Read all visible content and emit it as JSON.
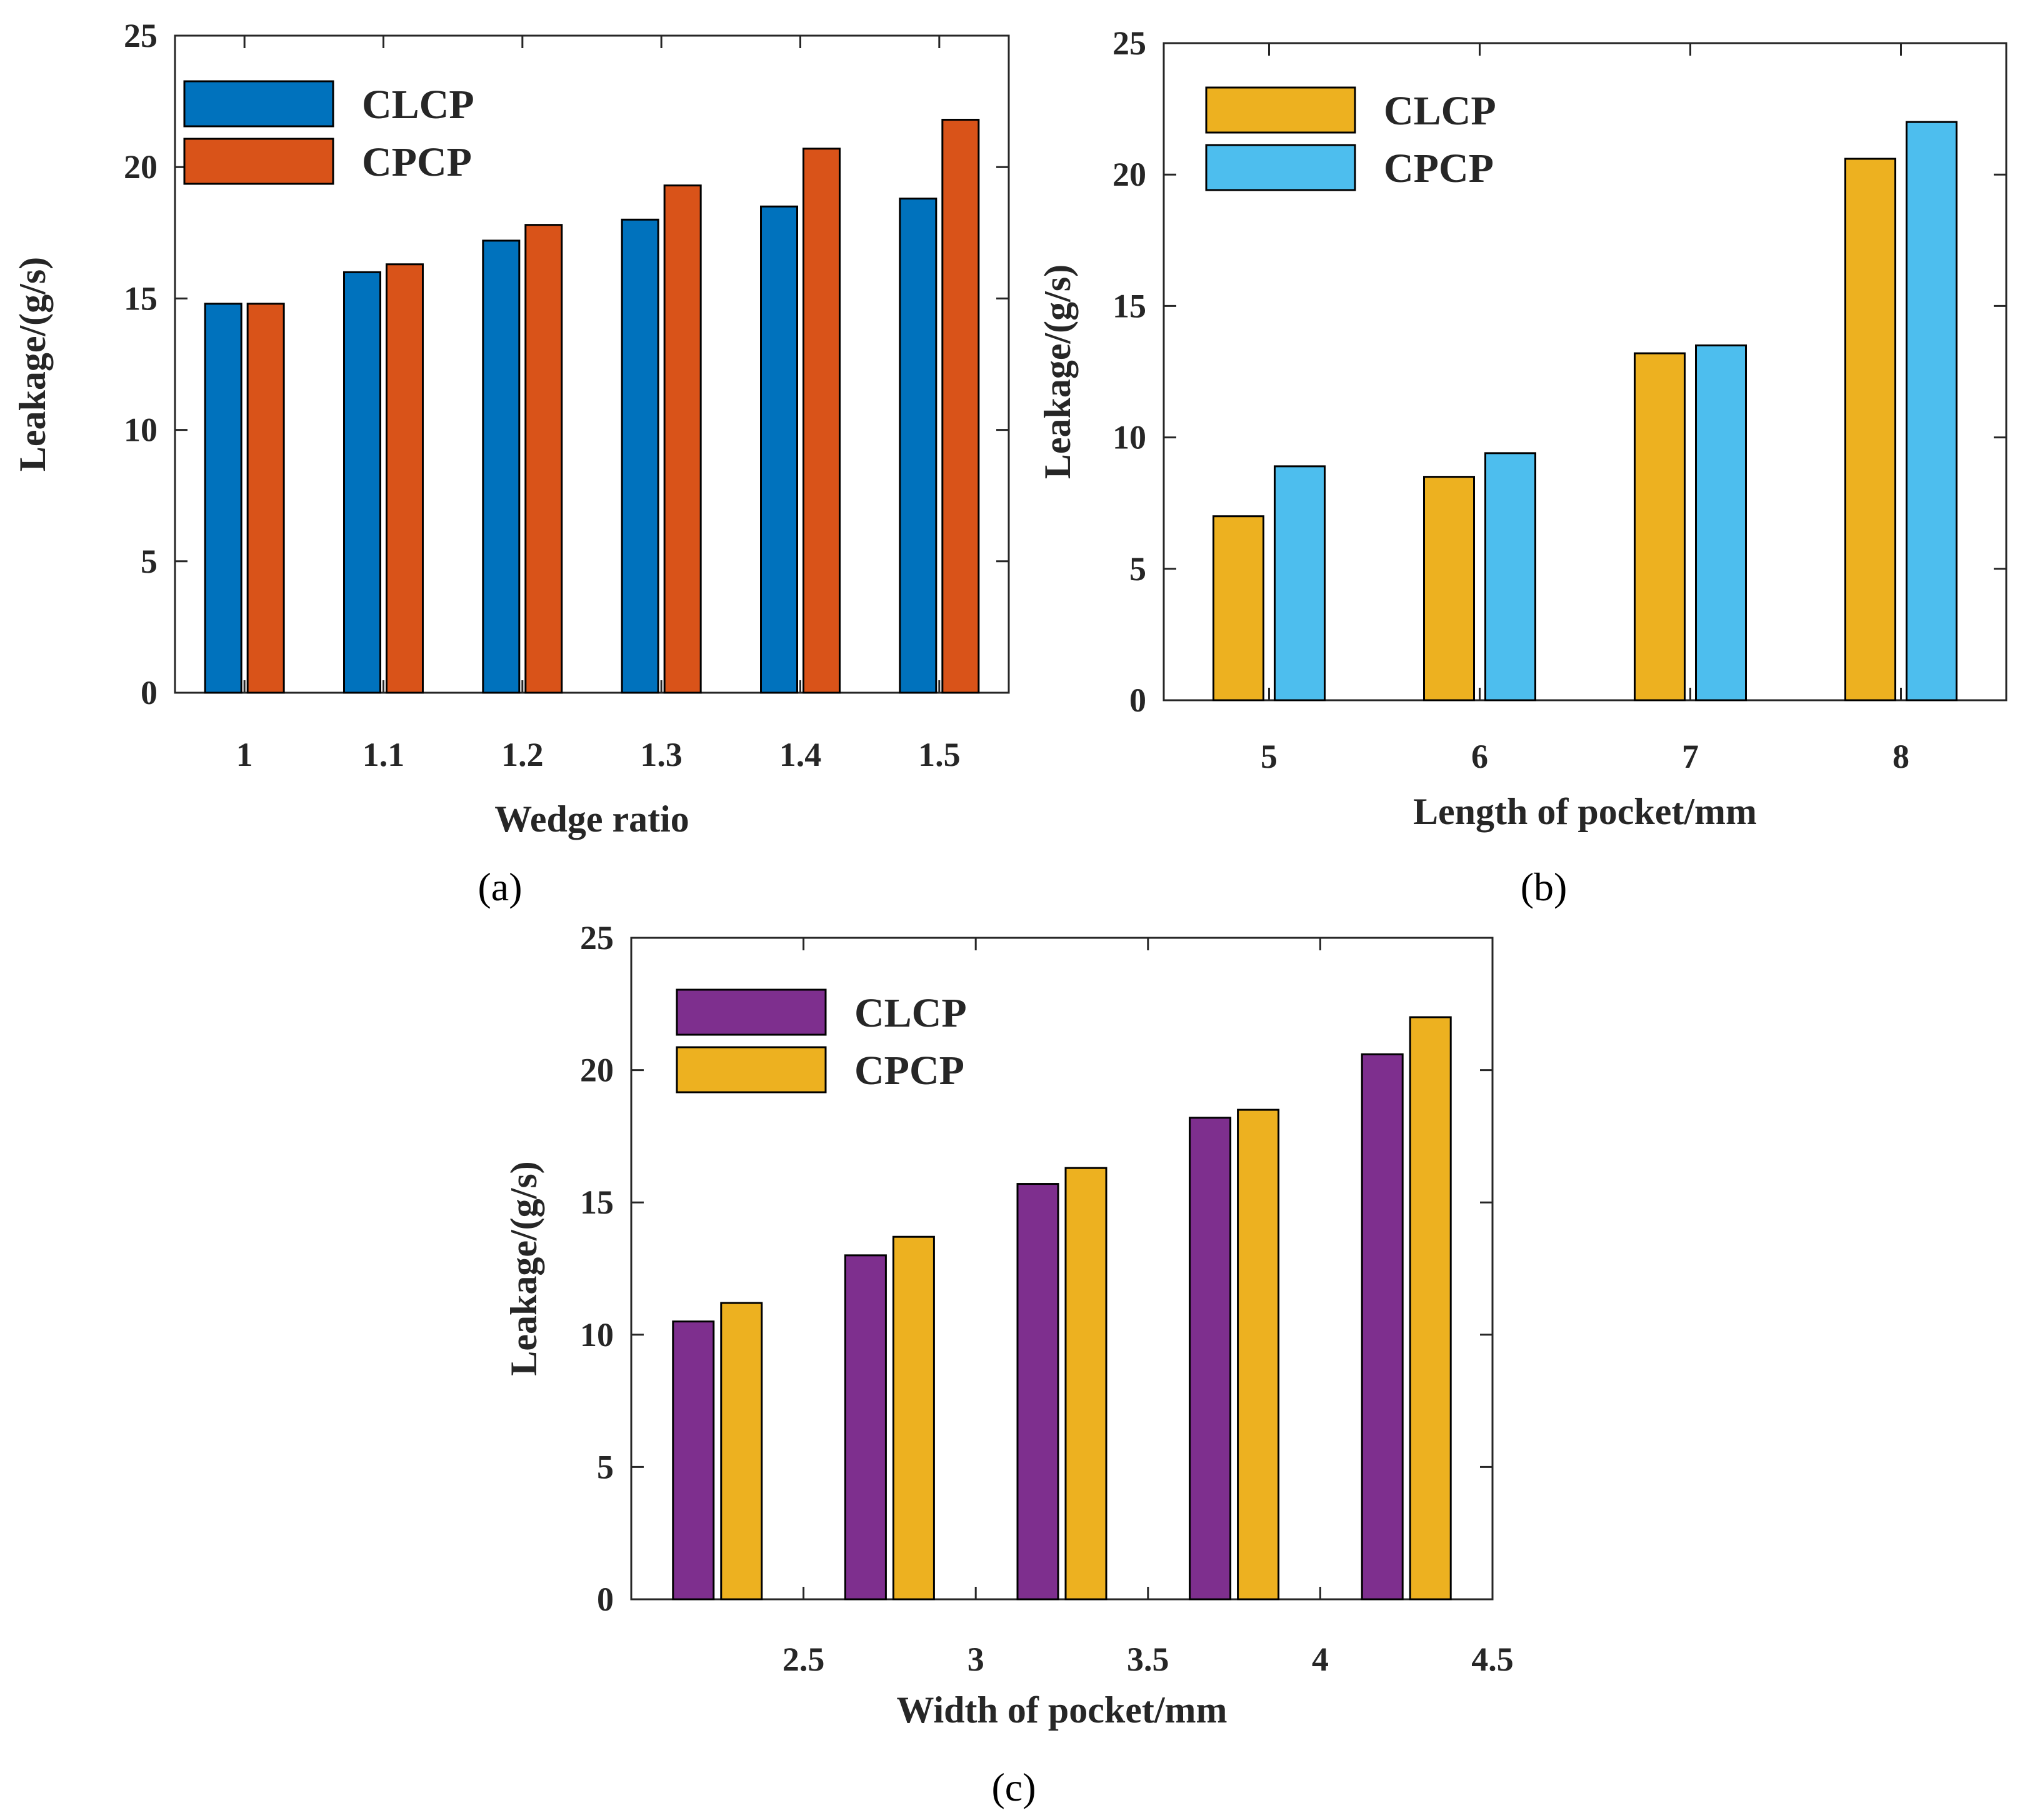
{
  "chart_data": [
    {
      "type": "bar",
      "caption": "(a)",
      "categories": [
        "1",
        "1.1",
        "1.2",
        "1.3",
        "1.4",
        "1.5"
      ],
      "series": [
        {
          "name": "CLCP",
          "color": "#0072BD",
          "values": [
            14.8,
            16.0,
            17.2,
            18.0,
            18.5,
            18.8
          ]
        },
        {
          "name": "CPCP",
          "color": "#D95319",
          "values": [
            14.8,
            16.3,
            17.8,
            19.3,
            20.7,
            21.8
          ]
        }
      ],
      "xlabel": "Wedge ratio",
      "ylabel": "Leakage/(g/s)",
      "ylim": [
        0,
        25
      ],
      "yticks": [
        "0",
        "5",
        "10",
        "15",
        "20",
        "25"
      ],
      "legend": "top-left"
    },
    {
      "type": "bar",
      "caption": "(b)",
      "categories": [
        "5",
        "6",
        "7",
        "8"
      ],
      "series": [
        {
          "name": "CLCP",
          "color": "#EDB120",
          "values": [
            7.0,
            8.5,
            13.2,
            20.6
          ]
        },
        {
          "name": "CPCP",
          "color": "#4DBEEE",
          "values": [
            8.9,
            9.4,
            13.5,
            22.0
          ]
        }
      ],
      "xlabel": "Length of pocket/mm",
      "ylabel": "Leakage/(g/s)",
      "ylim": [
        0,
        25
      ],
      "yticks": [
        "0",
        "5",
        "10",
        "15",
        "20",
        "25"
      ],
      "legend": "top-left"
    },
    {
      "type": "bar",
      "caption": "(c)",
      "x": [
        2.25,
        2.75,
        3.25,
        3.75,
        4.25
      ],
      "xlim": [
        2.0,
        4.5
      ],
      "xticks": [
        "2.5",
        "3",
        "3.5",
        "4",
        "4.5"
      ],
      "xtick_values": [
        2.5,
        3,
        3.5,
        4,
        4.5
      ],
      "series": [
        {
          "name": "CLCP",
          "color": "#7E2F8E",
          "values": [
            10.5,
            13.0,
            15.7,
            18.2,
            20.6
          ]
        },
        {
          "name": "CPCP",
          "color": "#EDB120",
          "values": [
            11.2,
            13.7,
            16.3,
            18.5,
            22.0
          ]
        }
      ],
      "xlabel": "Width of pocket/mm",
      "ylabel": "Leakage/(g/s)",
      "ylim": [
        0,
        25
      ],
      "yticks": [
        "0",
        "5",
        "10",
        "15",
        "20",
        "25"
      ],
      "legend": "top-left"
    }
  ]
}
